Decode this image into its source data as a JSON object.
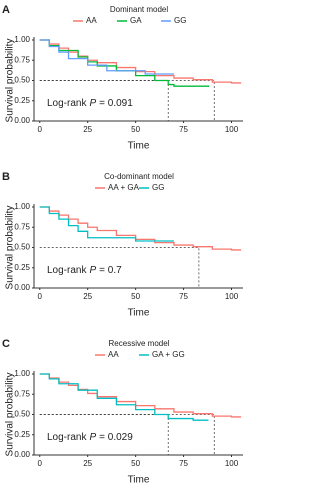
{
  "chart_data": [
    {
      "type": "step",
      "panel": "A",
      "title": "Dominant model",
      "xlabel": "Time",
      "ylabel": "Survival probability",
      "annotation": {
        "label": "Log-rank",
        "stat": "P",
        "value": "= 0.091"
      },
      "xlim": [
        -3,
        106
      ],
      "ylim": [
        0,
        1
      ],
      "xticks": [
        0,
        25,
        50,
        75,
        100
      ],
      "yticks": [
        {
          "value": 0,
          "label": "0.00"
        },
        {
          "value": 0.25,
          "label": "0.25"
        },
        {
          "value": 0.5,
          "label": "0.50"
        },
        {
          "value": 0.75,
          "label": "0.75"
        },
        {
          "value": 1,
          "label": "1.00"
        }
      ],
      "median_x": [
        67,
        91
      ],
      "series": [
        {
          "name": "AA",
          "color": "#f8766d",
          "x": [
            0,
            5,
            10,
            15,
            20,
            25,
            30,
            40,
            50,
            60,
            70,
            80,
            90,
            100,
            105
          ],
          "values": [
            1,
            0.95,
            0.9,
            0.85,
            0.8,
            0.75,
            0.72,
            0.66,
            0.61,
            0.56,
            0.53,
            0.51,
            0.48,
            0.47,
            0.47
          ]
        },
        {
          "name": "GA",
          "color": "#00ba38",
          "x": [
            0,
            5,
            10,
            20,
            25,
            30,
            40,
            50,
            60,
            67,
            70,
            80,
            88
          ],
          "values": [
            1,
            0.93,
            0.87,
            0.79,
            0.73,
            0.68,
            0.62,
            0.56,
            0.5,
            0.45,
            0.43,
            0.43,
            0.42
          ]
        },
        {
          "name": "GG",
          "color": "#619cff",
          "x": [
            0,
            5,
            10,
            15,
            25,
            35,
            50,
            55,
            65,
            70
          ],
          "values": [
            1,
            0.92,
            0.85,
            0.77,
            0.69,
            0.62,
            0.62,
            0.58,
            0.58,
            0.58
          ]
        }
      ]
    },
    {
      "type": "step",
      "panel": "B",
      "title": "Co-dominant model",
      "xlabel": "Time",
      "ylabel": "Survival probability",
      "annotation": {
        "label": "Log-rank",
        "stat": "P",
        "value": "= 0.7"
      },
      "xlim": [
        -3,
        106
      ],
      "ylim": [
        0,
        1
      ],
      "xticks": [
        0,
        25,
        50,
        75,
        100
      ],
      "yticks": [
        {
          "value": 0,
          "label": "0.00"
        },
        {
          "value": 0.25,
          "label": "0.25"
        },
        {
          "value": 0.5,
          "label": "0.50"
        },
        {
          "value": 0.75,
          "label": "0.75"
        },
        {
          "value": 1,
          "label": "1.00"
        }
      ],
      "median_x": [
        83
      ],
      "series": [
        {
          "name": "AA + GA",
          "color": "#f8766d",
          "x": [
            0,
            5,
            10,
            15,
            20,
            25,
            30,
            40,
            50,
            60,
            70,
            80,
            90,
            100,
            105
          ],
          "values": [
            1,
            0.95,
            0.9,
            0.85,
            0.8,
            0.75,
            0.71,
            0.65,
            0.6,
            0.56,
            0.53,
            0.51,
            0.48,
            0.47,
            0.47
          ]
        },
        {
          "name": "GG",
          "color": "#00bfc4",
          "x": [
            0,
            5,
            10,
            15,
            20,
            25,
            30,
            50,
            70
          ],
          "values": [
            1,
            0.92,
            0.85,
            0.77,
            0.7,
            0.62,
            0.62,
            0.58,
            0.58
          ]
        }
      ]
    },
    {
      "type": "step",
      "panel": "C",
      "title": "Recessive model",
      "xlabel": "Time",
      "ylabel": "Survival probability",
      "annotation": {
        "label": "Log-rank",
        "stat": "P",
        "value": "= 0.029"
      },
      "xlim": [
        -3,
        106
      ],
      "ylim": [
        0,
        1
      ],
      "xticks": [
        0,
        25,
        50,
        75,
        100
      ],
      "yticks": [
        {
          "value": 0,
          "label": "0.00"
        },
        {
          "value": 0.25,
          "label": "0.25"
        },
        {
          "value": 0.5,
          "label": "0.50"
        },
        {
          "value": 0.75,
          "label": "0.75"
        },
        {
          "value": 1,
          "label": "1.00"
        }
      ],
      "median_x": [
        67,
        91
      ],
      "series": [
        {
          "name": "AA",
          "color": "#f8766d",
          "x": [
            0,
            5,
            10,
            15,
            20,
            25,
            30,
            40,
            50,
            60,
            70,
            80,
            90,
            100,
            105
          ],
          "values": [
            1,
            0.95,
            0.9,
            0.86,
            0.81,
            0.76,
            0.72,
            0.66,
            0.61,
            0.57,
            0.53,
            0.51,
            0.48,
            0.47,
            0.47
          ]
        },
        {
          "name": "GA + GG",
          "color": "#00bfc4",
          "x": [
            0,
            5,
            10,
            20,
            30,
            40,
            50,
            60,
            67,
            80,
            88
          ],
          "values": [
            1,
            0.94,
            0.88,
            0.8,
            0.7,
            0.62,
            0.56,
            0.5,
            0.45,
            0.43,
            0.43
          ]
        }
      ]
    }
  ]
}
